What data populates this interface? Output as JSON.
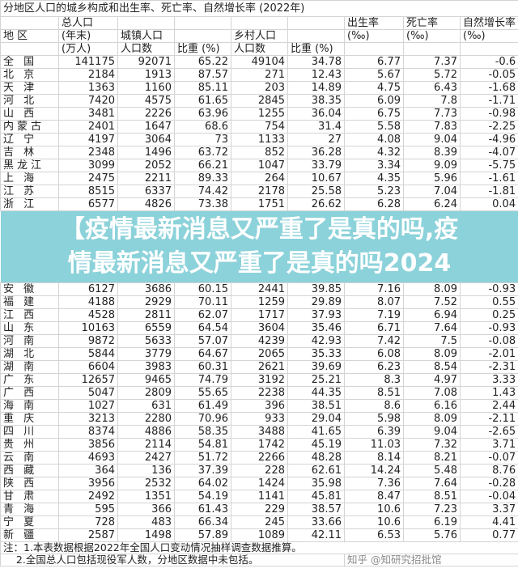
{
  "title": "分地区人口的城乡构成和出生率、死亡率、自然增长率 (2022年)",
  "headers": {
    "region": "地 区",
    "total_l1": "总人口",
    "total_l2": "(年末)",
    "total_l3": "(万人)",
    "urban": "城镇人口",
    "urban_count": "人口数",
    "urban_share": "比重 (%)",
    "rural": "乡村人口",
    "rural_count": "人口数",
    "rural_share": "比重 (%)",
    "birth": "出生率",
    "death": "死亡率",
    "natural": "自然增长率",
    "permille": "(‰)"
  },
  "rows": [
    [
      "全 国",
      "141175",
      "92071",
      "65.22",
      "49104",
      "34.78",
      "6.77",
      "7.37",
      "-0.6"
    ],
    [
      "北 京",
      "2184",
      "1913",
      "87.57",
      "271",
      "12.43",
      "5.67",
      "5.72",
      "-0.05"
    ],
    [
      "天 津",
      "1363",
      "1160",
      "85.11",
      "203",
      "14.89",
      "4.75",
      "6.43",
      "-1.68"
    ],
    [
      "河 北",
      "7420",
      "4575",
      "61.65",
      "2845",
      "38.35",
      "6.09",
      "7.8",
      "-1.71"
    ],
    [
      "山 西",
      "3481",
      "2226",
      "63.96",
      "1255",
      "36.04",
      "6.75",
      "7.73",
      "-0.98"
    ],
    [
      "内蒙古",
      "2401",
      "1647",
      "68.6",
      "754",
      "31.4",
      "5.58",
      "7.83",
      "-2.25"
    ],
    [
      "辽 宁",
      "4197",
      "3064",
      "73",
      "1133",
      "27",
      "4.08",
      "9.04",
      "-4.96"
    ],
    [
      "吉 林",
      "2348",
      "1496",
      "63.72",
      "852",
      "36.28",
      "4.32",
      "8.39",
      "-4.07"
    ],
    [
      "黑龙江",
      "3099",
      "2052",
      "66.21",
      "1047",
      "33.79",
      "3.34",
      "9.09",
      "-5.75"
    ],
    [
      "上 海",
      "2475",
      "2211",
      "89.33",
      "264",
      "10.67",
      "4.35",
      "5.96",
      "-1.61"
    ],
    [
      "江 苏",
      "8515",
      "6337",
      "74.42",
      "2178",
      "25.58",
      "5.23",
      "7.04",
      "-1.81"
    ],
    [
      "浙 江",
      "6577",
      "4826",
      "73.38",
      "1751",
      "26.62",
      "6.28",
      "6.24",
      "0.04"
    ],
    [
      "安 徽",
      "6127",
      "3686",
      "60.15",
      "2441",
      "39.85",
      "7.16",
      "8.09",
      "-0.93"
    ],
    [
      "福 建",
      "4188",
      "2929",
      "70.11",
      "1259",
      "29.89",
      "8.07",
      "7.52",
      "0.55"
    ],
    [
      "江 西",
      "4528",
      "2811",
      "62.07",
      "1717",
      "37.93",
      "7.19",
      "6.94",
      "0.25"
    ],
    [
      "山 东",
      "10163",
      "6559",
      "64.54",
      "3604",
      "35.46",
      "6.71",
      "7.64",
      "-0.93"
    ],
    [
      "河 南",
      "9872",
      "5633",
      "57.07",
      "4239",
      "42.93",
      "7.42",
      "7.5",
      "-0.08"
    ],
    [
      "湖 北",
      "5844",
      "3779",
      "64.67",
      "2065",
      "35.33",
      "6.08",
      "8.09",
      "-2.01"
    ],
    [
      "湖 南",
      "6604",
      "3983",
      "60.31",
      "2621",
      "39.69",
      "6.23",
      "8.54",
      "-2.31"
    ],
    [
      "广 东",
      "12657",
      "9465",
      "74.79",
      "3192",
      "25.21",
      "8.3",
      "4.97",
      "3.33"
    ],
    [
      "广 西",
      "5047",
      "2809",
      "55.65",
      "2238",
      "44.35",
      "8.51",
      "7.08",
      "1.43"
    ],
    [
      "海 南",
      "1027",
      "631",
      "61.49",
      "396",
      "38.51",
      "8.6",
      "6.16",
      "2.44"
    ],
    [
      "重 庆",
      "3213",
      "2280",
      "70.96",
      "933",
      "29.04",
      "5.98",
      "8.09",
      "-2.11"
    ],
    [
      "四 川",
      "8374",
      "4886",
      "58.35",
      "3488",
      "41.65",
      "6.39",
      "9.04",
      "-2.65"
    ],
    [
      "贵 州",
      "3856",
      "2114",
      "54.81",
      "1742",
      "45.19",
      "11.03",
      "7.32",
      "3.71"
    ],
    [
      "云 南",
      "4693",
      "2427",
      "51.72",
      "2266",
      "48.28",
      "8.14",
      "8.21",
      "-0.07"
    ],
    [
      "西 藏",
      "364",
      "136",
      "37.39",
      "228",
      "62.61",
      "14.24",
      "5.48",
      "8.76"
    ],
    [
      "陕 西",
      "3956",
      "2532",
      "64.02",
      "1424",
      "35.98",
      "7.36",
      "7.64",
      "-0.28"
    ],
    [
      "甘 肃",
      "2492",
      "1351",
      "54.19",
      "1141",
      "45.81",
      "8.47",
      "8.51",
      "-0.04"
    ],
    [
      "青 海",
      "595",
      "366",
      "61.43",
      "229",
      "38.57",
      "10.6",
      "7.23",
      "3.37"
    ],
    [
      "宁 夏",
      "728",
      "483",
      "66.34",
      "245",
      "33.66",
      "10.6",
      "6.19",
      "4.41"
    ],
    [
      "新 疆",
      "2587",
      "1498",
      "57.89",
      "1089",
      "42.11",
      "6.53",
      "5.76",
      "0.77"
    ]
  ],
  "notes": [
    "注：1.本表数据根据2022年全国人口变动情况抽样调查数据推算。",
    "    2.全国总人口包括现役军人数，分地区数据中未包括。"
  ],
  "banner": {
    "line1": "【疫情最新消息又严重了是真的吗,疫",
    "line2": "情最新消息又严重了是真的吗2024",
    "color": "#8cd2da"
  },
  "watermark": "知乎 @知研究招批馆"
}
